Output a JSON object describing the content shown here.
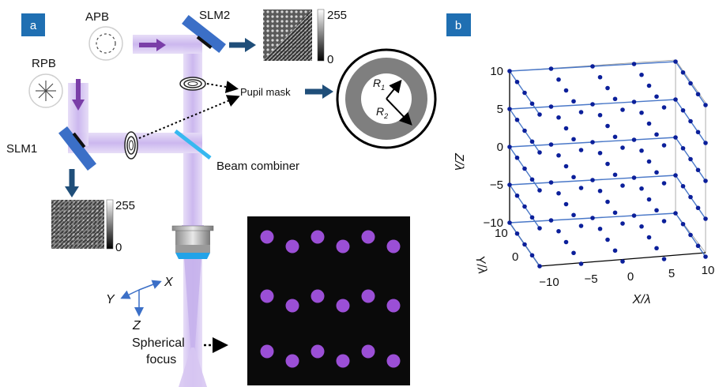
{
  "panel_a": {
    "tag": "a",
    "apb_label": "APB",
    "rpb_label": "RPB",
    "slm1_label": "SLM1",
    "slm2_label": "SLM2",
    "pupil_mask_label": "Pupil mask",
    "beam_combiner_label": "Beam combiner",
    "spherical_focus_label_1": "Spherical",
    "spherical_focus_label_2": "focus",
    "r1_label": "R",
    "r1_sub": "1",
    "r2_label": "R",
    "r2_sub": "2",
    "scale_max": "255",
    "scale_min": "0",
    "axis_x": "X",
    "axis_y": "Y",
    "axis_z": "Z"
  },
  "panel_b": {
    "tag": "b",
    "x_axis_label": "X/λ",
    "y_axis_label": "Y/λ",
    "z_axis_label": "Z/λ",
    "z_ticks": [
      "10",
      "5",
      "0",
      "−5",
      "−10"
    ],
    "x_ticks": [
      "−10",
      "−5",
      "0",
      "5",
      "10"
    ],
    "y_ticks": [
      "10",
      "0"
    ]
  },
  "colors": {
    "tag_bg": "#1f6fb2",
    "beam": "#cdb9ee",
    "arrow_purple": "#7a3ea8",
    "arrow_navy": "#1f4e79",
    "slm_blue": "#3b6fc7",
    "combiner": "#36b8f0",
    "focus_spot": "#9b4fd6",
    "lattice_dot": "#0b1f9a",
    "lattice_line": "#4a78c8"
  }
}
